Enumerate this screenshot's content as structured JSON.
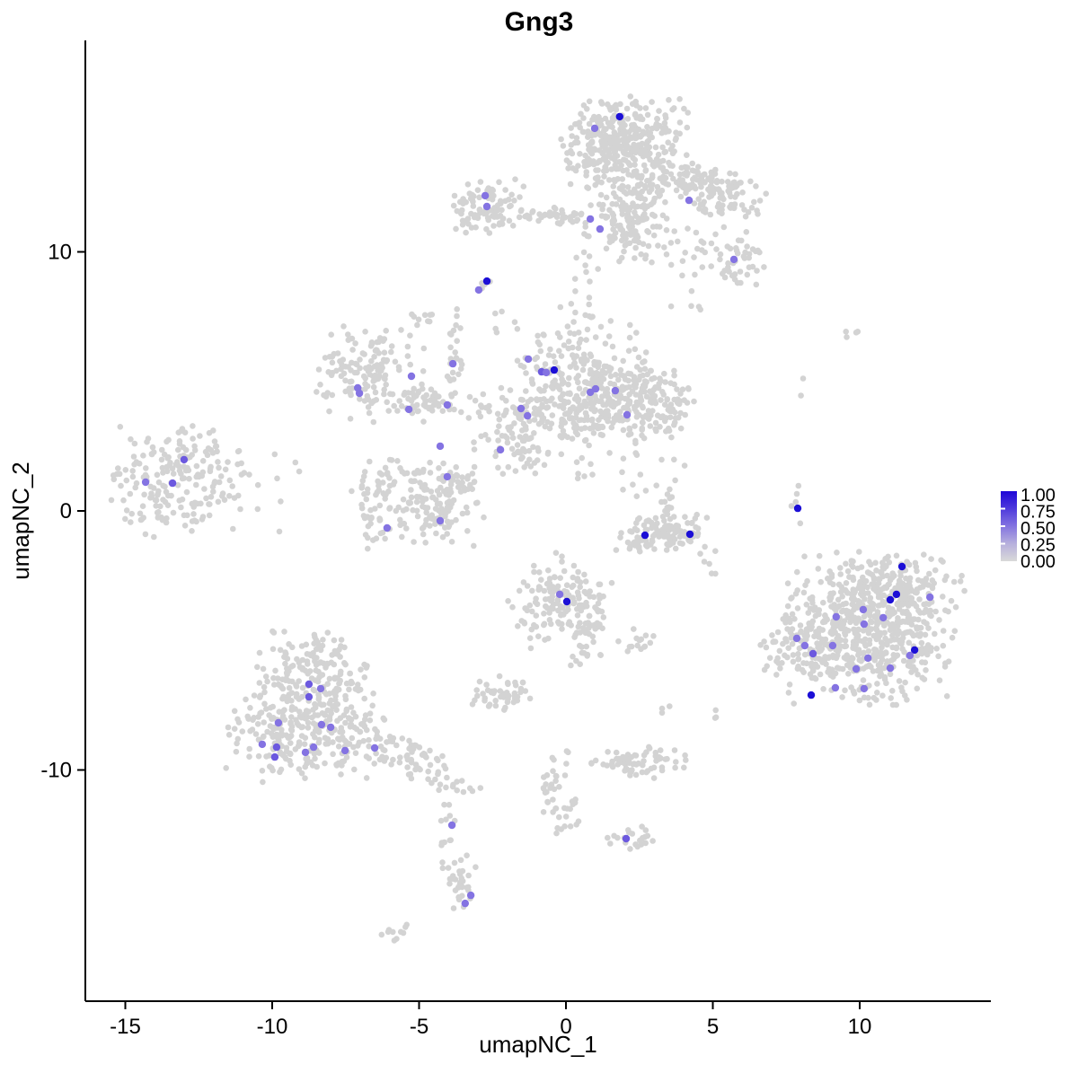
{
  "title": "Gng3",
  "axes": {
    "x": {
      "label": "umapNC_1",
      "ticks": [
        -15,
        -10,
        -5,
        0,
        5,
        10
      ]
    },
    "y": {
      "label": "umapNC_2",
      "ticks": [
        -10,
        0,
        10
      ]
    }
  },
  "legend": {
    "tick_labels": [
      "1.00",
      "0.75",
      "0.50",
      "0.25",
      "0.00"
    ],
    "gradient_stops": [
      "#1F06D7",
      "#4E3ADC",
      "#8474E0",
      "#B7B0DD",
      "#D9D9D9"
    ]
  },
  "colors": {
    "background_point": "#D3D3D3",
    "axis": "#000000",
    "expression_levels": {
      "0.5": "#8473E2",
      "0.6": "#6C59DF",
      "1": "#1C0FD6"
    }
  },
  "chart_data": {
    "type": "scatter",
    "title": "Gng3",
    "xlabel": "umapNC_1",
    "ylabel": "umapNC_2",
    "x_range": [
      -16.4,
      14.5
    ],
    "y_range": [
      -18.9,
      18.2
    ],
    "legend_scale": [
      0,
      1
    ],
    "grid": false,
    "clusters": [
      {
        "id": "top-main",
        "cx": 1.99,
        "cy": 14.18,
        "sx": 1.0,
        "sy": 0.87,
        "rot": 0,
        "n": 380
      },
      {
        "id": "top-lower",
        "cx": 2.14,
        "cy": 11.4,
        "sx": 0.73,
        "sy": 0.87,
        "rot": 0,
        "n": 170
      },
      {
        "id": "top-arm",
        "cx": 4.89,
        "cy": 12.44,
        "sx": 0.95,
        "sy": 0.45,
        "rot": -20,
        "n": 140
      },
      {
        "id": "arm-blob",
        "cx": 5.81,
        "cy": 9.67,
        "sx": 0.46,
        "sy": 0.52,
        "rot": 0,
        "n": 40
      },
      {
        "id": "arm-sparse",
        "cx": 4.59,
        "cy": 9.5,
        "sx": 0.8,
        "sy": 1.0,
        "rot": 0,
        "n": 28
      },
      {
        "id": "top-trail",
        "cx": 0.31,
        "cy": 8.28,
        "sx": 0.38,
        "sy": 1.15,
        "rot": 0,
        "n": 18
      },
      {
        "id": "topleft-blob",
        "cx": -2.6,
        "cy": 11.75,
        "sx": 0.61,
        "sy": 0.52,
        "rot": 0,
        "n": 85
      },
      {
        "id": "topleft-strand",
        "cx": -0.61,
        "cy": 11.37,
        "sx": 0.86,
        "sy": 0.16,
        "rot": 0,
        "n": 45
      },
      {
        "id": "topleft-tip",
        "cx": -3.36,
        "cy": 11.23,
        "sx": 0.21,
        "sy": 0.15,
        "rot": 0,
        "n": 7
      },
      {
        "id": "tiny-pair",
        "cx": -2.75,
        "cy": 8.8,
        "sx": 0.15,
        "sy": 0.13,
        "rot": 0,
        "n": 4
      },
      {
        "id": "ring",
        "cx": -6.79,
        "cy": 5.34,
        "sx": 0.92,
        "sy": 0.9,
        "rot": 0,
        "n": 135
      },
      {
        "id": "chain",
        "cx": -4.65,
        "cy": 4.12,
        "sx": 0.7,
        "sy": 0.38,
        "rot": -15,
        "n": 55
      },
      {
        "id": "strand-vert",
        "cx": -3.82,
        "cy": 6.2,
        "sx": 0.15,
        "sy": 0.9,
        "rot": 0,
        "n": 25
      },
      {
        "id": "bits",
        "cx": -4.89,
        "cy": 7.42,
        "sx": 0.27,
        "sy": 0.15,
        "rot": 0,
        "n": 9
      },
      {
        "id": "mid-band",
        "cx": -0.92,
        "cy": 3.85,
        "sx": 1.1,
        "sy": 0.49,
        "rot": 0,
        "n": 95
      },
      {
        "id": "mid-blob",
        "cx": 0.61,
        "cy": 4.82,
        "sx": 1.1,
        "sy": 1.21,
        "rot": 0,
        "n": 230
      },
      {
        "id": "mid-right",
        "cx": 2.14,
        "cy": 4.3,
        "sx": 0.95,
        "sy": 0.8,
        "rot": 0,
        "n": 170
      },
      {
        "id": "mid-right2",
        "cx": 3.52,
        "cy": 3.95,
        "sx": 0.5,
        "sy": 0.52,
        "rot": 0,
        "n": 40
      },
      {
        "id": "mid-sparse",
        "cx": -2.14,
        "cy": 2.56,
        "sx": 0.7,
        "sy": 0.7,
        "rot": 0,
        "n": 20
      },
      {
        "id": "mid-small",
        "cx": -1.38,
        "cy": 2.22,
        "sx": 0.5,
        "sy": 0.42,
        "rot": 0,
        "n": 28
      },
      {
        "id": "mid-tail",
        "cx": 0.61,
        "cy": 2.39,
        "sx": 0.27,
        "sy": 0.62,
        "rot": 0,
        "n": 14
      },
      {
        "id": "mid-sparse2",
        "cx": 2.75,
        "cy": 2.04,
        "sx": 0.6,
        "sy": 0.9,
        "rot": 0,
        "n": 15
      },
      {
        "id": "mid-dots",
        "cx": -2.29,
        "cy": 7.07,
        "sx": 0.4,
        "sy": 0.35,
        "rot": 0,
        "n": 6
      },
      {
        "id": "left-cluster",
        "cx": -13.3,
        "cy": 1.11,
        "sx": 1.0,
        "sy": 1.0,
        "rot": 0,
        "n": 185
      },
      {
        "id": "left-sparse",
        "cx": -11.0,
        "cy": 1.0,
        "sx": 1.1,
        "sy": 1.1,
        "rot": 0,
        "n": 25
      },
      {
        "id": "u-left",
        "cx": -6.12,
        "cy": 0.31,
        "sx": 0.58,
        "sy": 0.8,
        "rot": 10,
        "n": 80
      },
      {
        "id": "u-right",
        "cx": -4.28,
        "cy": 0.14,
        "sx": 0.72,
        "sy": 0.7,
        "rot": 0,
        "n": 100
      },
      {
        "id": "u-tip",
        "cx": -3.67,
        "cy": 1.18,
        "sx": 0.33,
        "sy": 0.33,
        "rot": 0,
        "n": 22
      },
      {
        "id": "u-sparse",
        "cx": -5.2,
        "cy": 1.77,
        "sx": 0.8,
        "sy": 0.3,
        "rot": 0,
        "n": 10
      },
      {
        "id": "crescent-left",
        "cx": 2.69,
        "cy": -1.0,
        "sx": 0.55,
        "sy": 0.34,
        "rot": 8,
        "n": 60
      },
      {
        "id": "crescent-right",
        "cx": 3.82,
        "cy": -0.83,
        "sx": 0.55,
        "sy": 0.36,
        "rot": -8,
        "n": 62
      },
      {
        "id": "crescent-up",
        "cx": 3.43,
        "cy": 0.31,
        "sx": 0.2,
        "sy": 0.5,
        "rot": 0,
        "n": 14
      },
      {
        "id": "lone-strand",
        "cx": 7.83,
        "cy": 0.03,
        "sx": 0.1,
        "sy": 0.45,
        "rot": 0,
        "n": 5
      },
      {
        "id": "center-bottom",
        "cx": -0.15,
        "cy": -3.5,
        "sx": 0.83,
        "sy": 0.87,
        "rot": 0,
        "n": 150
      },
      {
        "id": "center-bottom-tail",
        "cx": 0.76,
        "cy": -4.71,
        "sx": 0.38,
        "sy": 0.55,
        "rot": 0,
        "n": 28
      },
      {
        "id": "center-bottom-dots",
        "cx": 0.46,
        "cy": -5.75,
        "sx": 0.28,
        "sy": 0.28,
        "rot": 0,
        "n": 5
      },
      {
        "id": "small-right",
        "cx": 2.6,
        "cy": -4.99,
        "sx": 0.38,
        "sy": 0.22,
        "rot": 0,
        "n": 15
      },
      {
        "id": "right-main",
        "cx": 10.4,
        "cy": -4.54,
        "sx": 1.35,
        "sy": 1.35,
        "rot": 0,
        "n": 600
      },
      {
        "id": "right-left-lobe",
        "cx": 8.1,
        "cy": -5.06,
        "sx": 0.72,
        "sy": 0.72,
        "rot": 0,
        "n": 85
      },
      {
        "id": "right-top",
        "cx": 11.16,
        "cy": -2.98,
        "sx": 1.1,
        "sy": 0.58,
        "rot": 0,
        "n": 100
      },
      {
        "id": "bottomleft-top",
        "cx": -8.72,
        "cy": -6.1,
        "sx": 0.9,
        "sy": 0.7,
        "rot": 0,
        "n": 135
      },
      {
        "id": "bottomleft-main",
        "cx": -8.87,
        "cy": -8.35,
        "sx": 1.3,
        "sy": 0.97,
        "rot": 0,
        "n": 310
      },
      {
        "id": "bottomleft-tail",
        "cx": -5.05,
        "cy": -9.74,
        "sx": 1.2,
        "sy": 0.42,
        "rot": -28,
        "n": 80
      },
      {
        "id": "bottomleft-descend",
        "cx": -3.98,
        "cy": -12.17,
        "sx": 0.2,
        "sy": 0.55,
        "rot": 0,
        "n": 6
      },
      {
        "id": "small-mid-bottom",
        "cx": -2.23,
        "cy": -7.04,
        "sx": 0.55,
        "sy": 0.3,
        "rot": 0,
        "n": 48
      },
      {
        "id": "strand-down",
        "cx": -0.46,
        "cy": -10.36,
        "sx": 0.2,
        "sy": 0.7,
        "rot": -10,
        "n": 24
      },
      {
        "id": "strand-curve",
        "cx": 0.06,
        "cy": -11.75,
        "sx": 0.28,
        "sy": 0.45,
        "rot": 15,
        "n": 20
      },
      {
        "id": "horizontal-cluster",
        "cx": 2.45,
        "cy": -9.74,
        "sx": 0.75,
        "sy": 0.3,
        "rot": 0,
        "n": 70
      },
      {
        "id": "dots-r1",
        "cx": 3.36,
        "cy": -7.66,
        "sx": 0.12,
        "sy": 0.28,
        "rot": 0,
        "n": 3
      },
      {
        "id": "dots-r2",
        "cx": 5.11,
        "cy": -7.56,
        "sx": 0.1,
        "sy": 0.28,
        "rot": 0,
        "n": 3
      },
      {
        "id": "dots-crescent-right",
        "cx": 5.05,
        "cy": -1.77,
        "sx": 0.18,
        "sy": 0.5,
        "rot": 0,
        "n": 5
      },
      {
        "id": "tail-clump",
        "cx": -3.61,
        "cy": -14.59,
        "sx": 0.27,
        "sy": 0.6,
        "rot": 0,
        "n": 36
      },
      {
        "id": "tail-dots",
        "cx": -4.13,
        "cy": -12.69,
        "sx": 0.18,
        "sy": 0.5,
        "rot": 0,
        "n": 5
      },
      {
        "id": "tail-clump2",
        "cx": -5.9,
        "cy": -16.26,
        "sx": 0.37,
        "sy": 0.17,
        "rot": 0,
        "n": 10
      },
      {
        "id": "small-bottom",
        "cx": 2.39,
        "cy": -12.69,
        "sx": 0.45,
        "sy": 0.25,
        "rot": 0,
        "n": 20
      },
      {
        "id": "dot-bottom",
        "cx": 1.62,
        "cy": -12.51,
        "sx": 0.1,
        "sy": 0.1,
        "rot": 0,
        "n": 2
      },
      {
        "id": "dots-topright",
        "cx": 9.63,
        "cy": 6.79,
        "sx": 0.3,
        "sy": 0.12,
        "rot": 0,
        "n": 4
      },
      {
        "id": "dots-midright",
        "cx": 7.71,
        "cy": 4.75,
        "sx": 0.22,
        "sy": 0.22,
        "rot": 0,
        "n": 2
      }
    ],
    "highlights": [
      [
        1.83,
        15.22,
        1
      ],
      [
        0.98,
        14.77,
        0.5
      ],
      [
        0.83,
        11.27,
        0.5
      ],
      [
        1.16,
        10.88,
        0.5
      ],
      [
        4.19,
        11.99,
        0.5
      ],
      [
        5.72,
        9.71,
        0.5
      ],
      [
        -2.75,
        12.17,
        0.5
      ],
      [
        -2.69,
        11.75,
        0.5
      ],
      [
        -2.69,
        8.87,
        1
      ],
      [
        -2.97,
        8.53,
        0.5
      ],
      [
        -3.85,
        5.68,
        0.5
      ],
      [
        -5.26,
        5.2,
        0.5
      ],
      [
        -7.09,
        4.75,
        0.5
      ],
      [
        -7.03,
        4.54,
        0.5
      ],
      [
        -5.35,
        3.92,
        0.5
      ],
      [
        -4.04,
        4.09,
        0.5
      ],
      [
        -1.28,
        5.86,
        0.5
      ],
      [
        -0.83,
        5.37,
        0.6
      ],
      [
        -0.67,
        5.34,
        0.5
      ],
      [
        -0.4,
        5.44,
        1
      ],
      [
        0.83,
        4.58,
        0.5
      ],
      [
        1.01,
        4.71,
        0.5
      ],
      [
        1.68,
        4.64,
        0.5
      ],
      [
        2.08,
        3.71,
        0.5
      ],
      [
        -1.53,
        3.95,
        0.5
      ],
      [
        -1.31,
        3.67,
        0.5
      ],
      [
        -4.28,
        2.5,
        0.5
      ],
      [
        -2.23,
        2.36,
        0.5
      ],
      [
        -4.04,
        1.32,
        0.5
      ],
      [
        -4.28,
        -0.38,
        0.5
      ],
      [
        -6.09,
        -0.66,
        0.5
      ],
      [
        -13.0,
        1.98,
        0.6
      ],
      [
        -14.31,
        1.11,
        0.5
      ],
      [
        -13.39,
        1.07,
        0.6
      ],
      [
        2.69,
        -0.94,
        1
      ],
      [
        4.22,
        -0.9,
        1
      ],
      [
        7.89,
        0.1,
        1
      ],
      [
        -0.21,
        -3.22,
        0.5
      ],
      [
        0.03,
        -3.5,
        1
      ],
      [
        11.44,
        -2.15,
        1
      ],
      [
        11.25,
        -3.22,
        1
      ],
      [
        11.04,
        -3.43,
        1
      ],
      [
        12.39,
        -3.33,
        0.5
      ],
      [
        10.12,
        -3.81,
        0.5
      ],
      [
        9.2,
        -4.09,
        0.5
      ],
      [
        10.15,
        -4.37,
        0.5
      ],
      [
        10.8,
        -4.12,
        0.5
      ],
      [
        7.86,
        -4.92,
        0.5
      ],
      [
        8.13,
        -5.2,
        0.5
      ],
      [
        8.41,
        -5.51,
        0.6
      ],
      [
        9.08,
        -5.2,
        0.5
      ],
      [
        11.87,
        -5.37,
        1
      ],
      [
        11.71,
        -5.58,
        0.5
      ],
      [
        10.28,
        -5.68,
        0.5
      ],
      [
        9.88,
        -6.1,
        0.5
      ],
      [
        11.04,
        -6.07,
        0.5
      ],
      [
        9.17,
        -6.83,
        0.5
      ],
      [
        10.15,
        -6.86,
        0.5
      ],
      [
        8.35,
        -7.11,
        1
      ],
      [
        -8.75,
        -6.69,
        0.6
      ],
      [
        -8.35,
        -6.86,
        0.5
      ],
      [
        -8.75,
        -7.18,
        0.6
      ],
      [
        -9.79,
        -8.18,
        0.5
      ],
      [
        -8.32,
        -8.25,
        0.5
      ],
      [
        -8.01,
        -8.35,
        0.5
      ],
      [
        -10.34,
        -9.01,
        0.5
      ],
      [
        -9.85,
        -9.12,
        0.6
      ],
      [
        -9.91,
        -9.5,
        0.6
      ],
      [
        -8.87,
        -9.32,
        0.5
      ],
      [
        -8.59,
        -9.12,
        0.5
      ],
      [
        -7.52,
        -9.25,
        0.5
      ],
      [
        -6.51,
        -9.15,
        0.5
      ],
      [
        -3.88,
        -12.13,
        0.5
      ],
      [
        -3.24,
        -14.84,
        0.5
      ],
      [
        -3.43,
        -15.15,
        0.5
      ],
      [
        2.05,
        -12.65,
        0.6
      ]
    ]
  }
}
